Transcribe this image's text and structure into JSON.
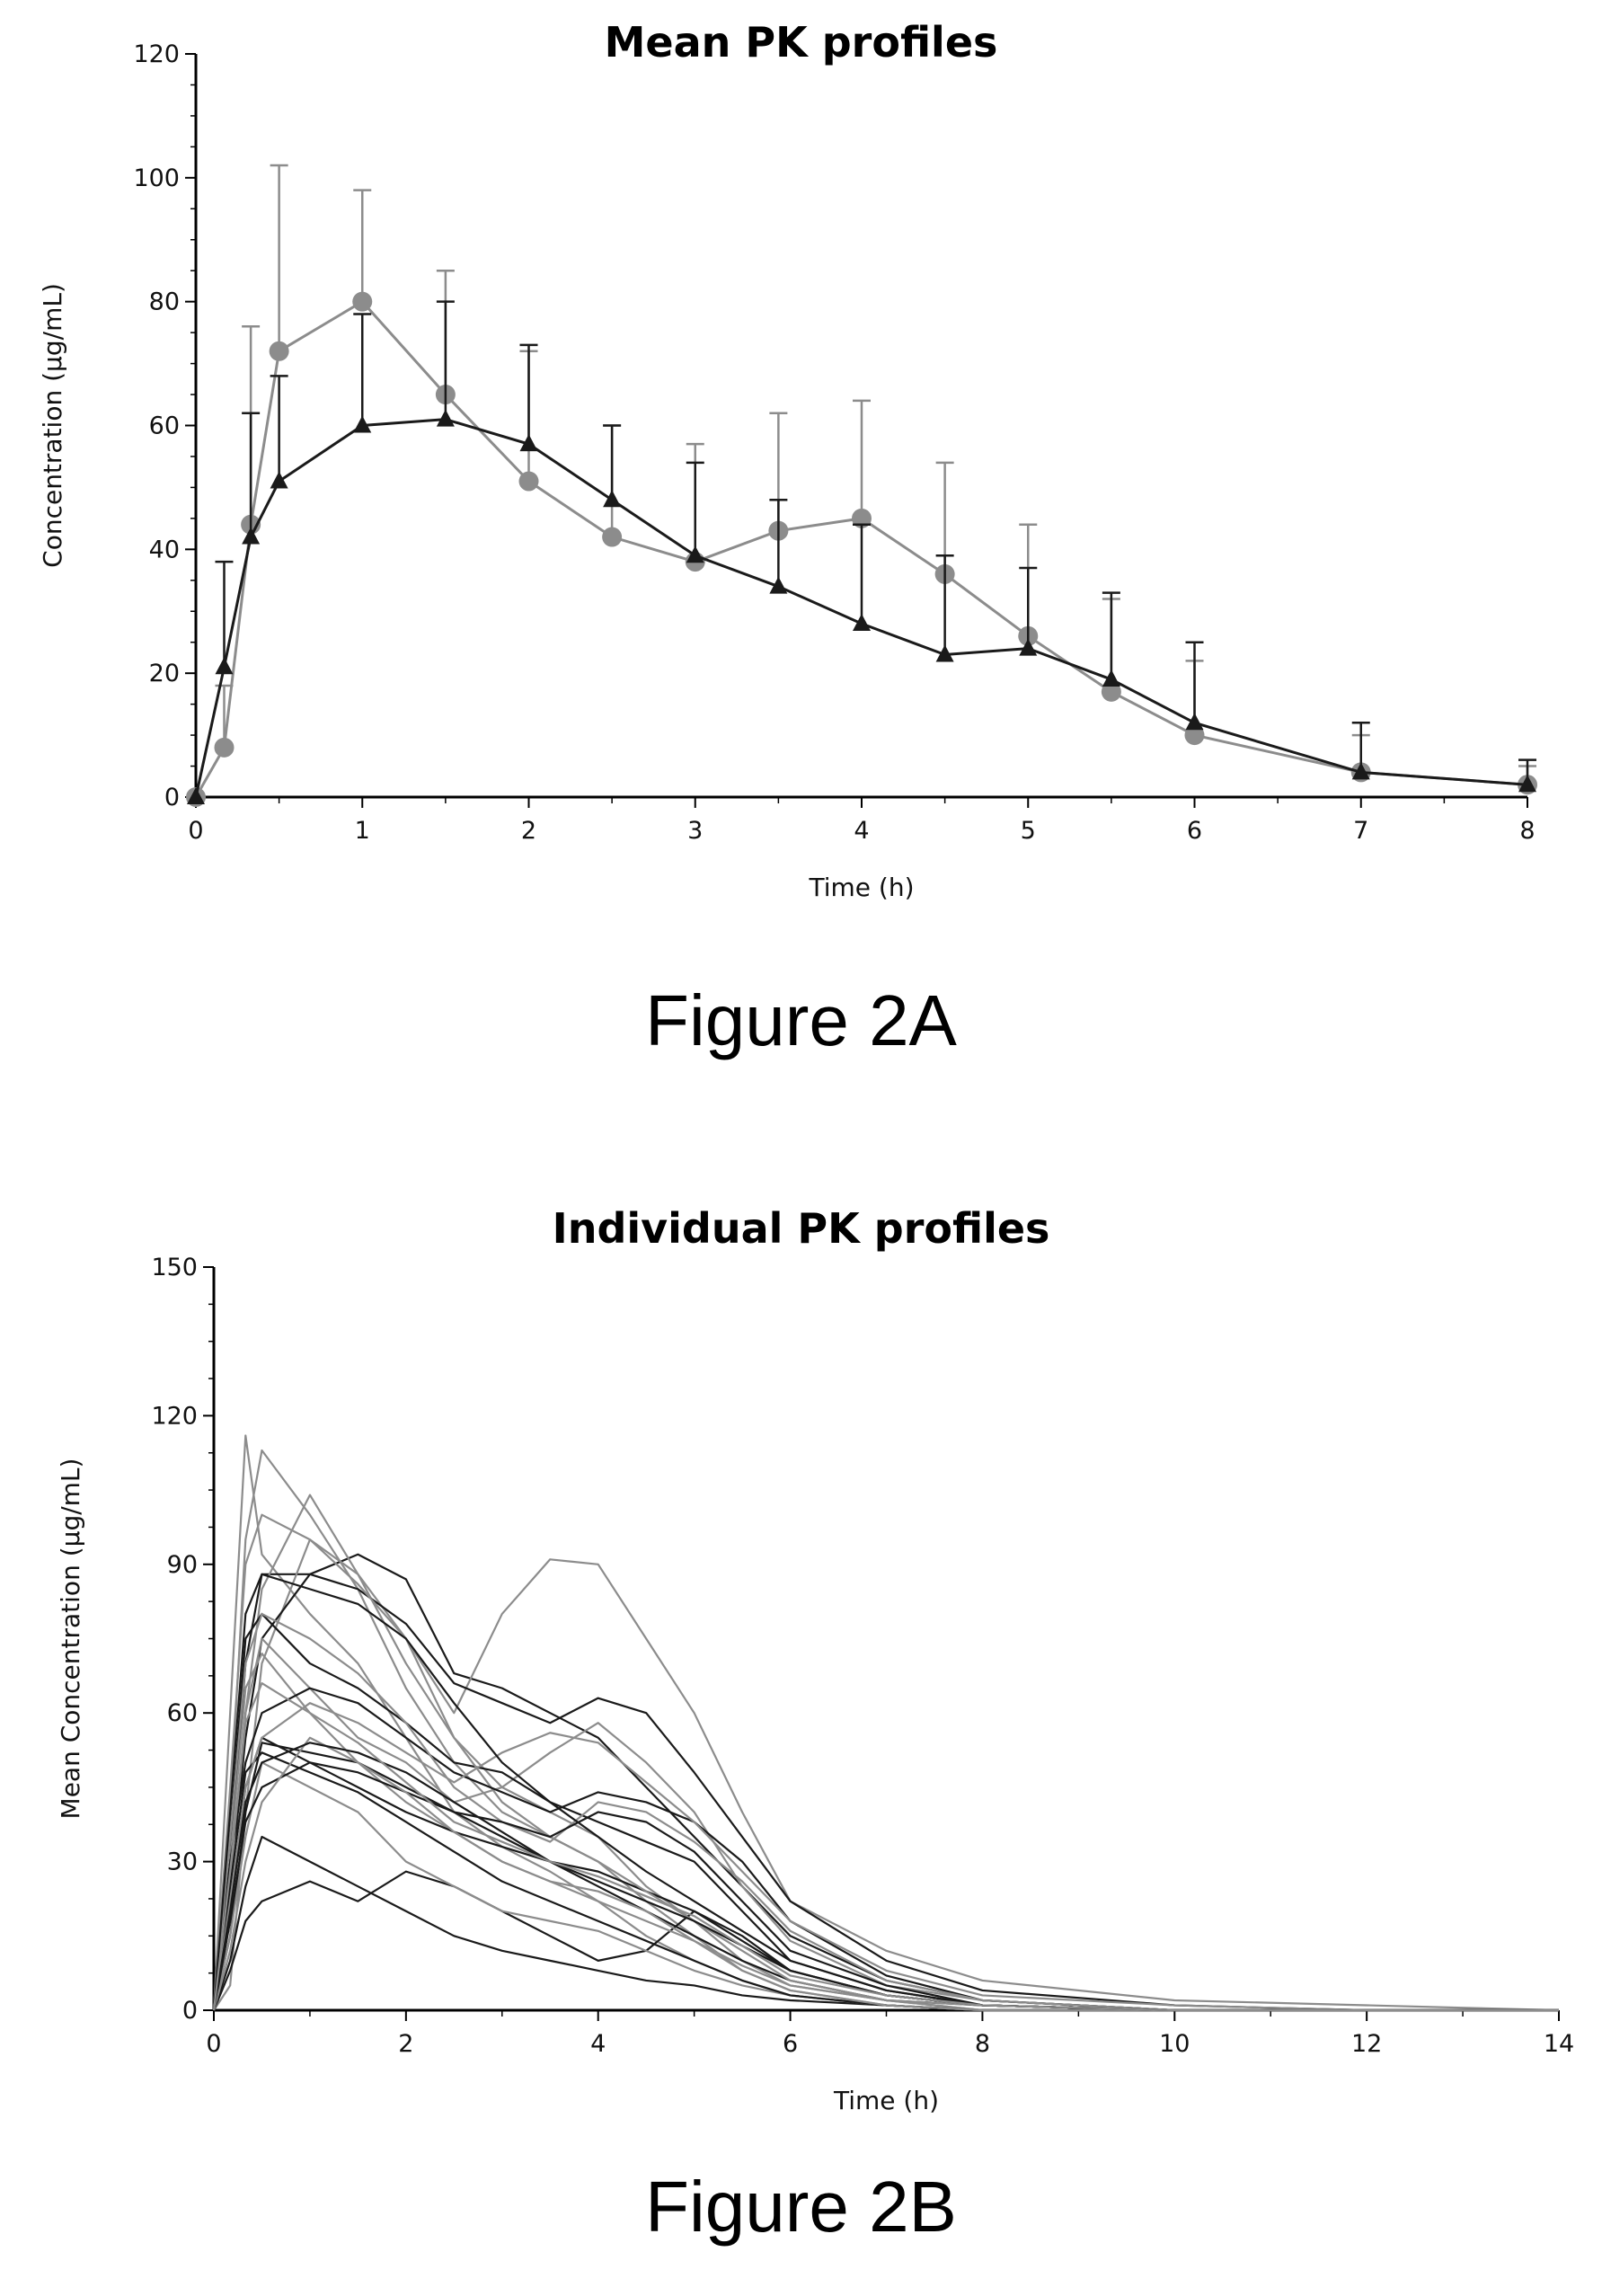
{
  "chart_data": [
    {
      "type": "line",
      "title": "Mean PK profiles",
      "caption": "Figure 2A",
      "xlabel": "Time (h)",
      "ylabel": "Concentration (µg/mL)",
      "xlim": [
        0,
        8
      ],
      "ylim": [
        0,
        120
      ],
      "xticks": [
        0,
        1,
        2,
        3,
        4,
        5,
        6,
        7,
        8
      ],
      "yticks": [
        0,
        20,
        40,
        60,
        80,
        100,
        120
      ],
      "grid": false,
      "legend": "none",
      "series": [
        {
          "marker": "circle",
          "color": "#8c8c8c",
          "x": [
            0,
            0.17,
            0.33,
            0.5,
            1,
            1.5,
            2,
            2.5,
            3,
            3.5,
            4,
            4.5,
            5,
            5.5,
            6,
            7,
            8
          ],
          "y": [
            0,
            8,
            44,
            72,
            80,
            65,
            51,
            42,
            38,
            43,
            45,
            36,
            26,
            17,
            10,
            4,
            2
          ],
          "error_upper": [
            0,
            18,
            76,
            102,
            98,
            85,
            72,
            60,
            57,
            62,
            64,
            54,
            44,
            32,
            22,
            10,
            5
          ]
        },
        {
          "marker": "triangle",
          "color": "#1a1a1a",
          "x": [
            0,
            0.17,
            0.33,
            0.5,
            1,
            1.5,
            2,
            2.5,
            3,
            3.5,
            4,
            4.5,
            5,
            5.5,
            6,
            7,
            8
          ],
          "y": [
            0,
            21,
            42,
            51,
            60,
            61,
            57,
            48,
            39,
            34,
            28,
            23,
            24,
            19,
            12,
            4,
            2
          ],
          "error_upper": [
            0,
            38,
            62,
            68,
            78,
            80,
            73,
            60,
            54,
            48,
            44,
            39,
            37,
            33,
            25,
            12,
            6
          ]
        }
      ]
    },
    {
      "type": "line",
      "title": "Individual PK profiles",
      "caption": "Figure 2B",
      "xlabel": "Time (h)",
      "ylabel": "Mean Concentration (µg/mL)",
      "xlim": [
        0,
        14
      ],
      "ylim": [
        0,
        150
      ],
      "xticks": [
        0,
        2,
        4,
        6,
        8,
        10,
        12,
        14
      ],
      "yticks": [
        0,
        30,
        60,
        90,
        120,
        150
      ],
      "grid": false,
      "legend": "none",
      "x": [
        0,
        0.17,
        0.33,
        0.5,
        1,
        1.5,
        2,
        2.5,
        3,
        3.5,
        4,
        4.5,
        5,
        5.5,
        6,
        7,
        8,
        10,
        12,
        14
      ],
      "series": [
        {
          "color": "#8c8c8c",
          "values": [
            0,
            60,
            116,
            92,
            80,
            70,
            55,
            40,
            33,
            28,
            22,
            15,
            10,
            6,
            3,
            1,
            0,
            0,
            0,
            0
          ]
        },
        {
          "color": "#8c8c8c",
          "values": [
            0,
            40,
            95,
            113,
            100,
            85,
            65,
            50,
            40,
            35,
            30,
            22,
            15,
            8,
            4,
            1,
            0,
            0,
            0,
            0
          ]
        },
        {
          "color": "#1a1a1a",
          "values": [
            0,
            30,
            70,
            88,
            88,
            92,
            87,
            68,
            65,
            60,
            55,
            45,
            35,
            25,
            15,
            6,
            2,
            0,
            0,
            0
          ]
        },
        {
          "color": "#8c8c8c",
          "values": [
            0,
            20,
            60,
            85,
            104,
            88,
            70,
            55,
            45,
            40,
            35,
            25,
            18,
            10,
            5,
            2,
            0,
            0,
            0,
            0
          ]
        },
        {
          "color": "#8c8c8c",
          "values": [
            0,
            5,
            40,
            70,
            95,
            88,
            75,
            60,
            80,
            91,
            90,
            75,
            60,
            40,
            22,
            12,
            6,
            2,
            1,
            0
          ]
        },
        {
          "color": "#1a1a1a",
          "values": [
            0,
            25,
            55,
            75,
            88,
            85,
            78,
            66,
            62,
            58,
            63,
            60,
            48,
            35,
            22,
            10,
            4,
            1,
            0,
            0
          ]
        },
        {
          "color": "#1a1a1a",
          "values": [
            0,
            15,
            40,
            54,
            52,
            50,
            45,
            40,
            35,
            30,
            25,
            20,
            15,
            10,
            6,
            2,
            1,
            0,
            0,
            0
          ]
        },
        {
          "color": "#1a1a1a",
          "values": [
            0,
            10,
            25,
            35,
            30,
            25,
            20,
            15,
            12,
            10,
            8,
            6,
            5,
            3,
            2,
            1,
            0,
            0,
            0,
            0
          ]
        },
        {
          "color": "#1a1a1a",
          "values": [
            0,
            8,
            18,
            22,
            26,
            22,
            28,
            25,
            20,
            15,
            10,
            12,
            20,
            15,
            8,
            3,
            1,
            0,
            0,
            0
          ]
        },
        {
          "color": "#8c8c8c",
          "values": [
            0,
            25,
            60,
            75,
            65,
            55,
            50,
            42,
            45,
            52,
            58,
            50,
            40,
            25,
            14,
            5,
            2,
            0,
            0,
            0
          ]
        },
        {
          "color": "#1a1a1a",
          "values": [
            0,
            35,
            75,
            80,
            70,
            65,
            58,
            50,
            48,
            42,
            38,
            34,
            30,
            20,
            10,
            4,
            1,
            0,
            0,
            0
          ]
        },
        {
          "color": "#8c8c8c",
          "values": [
            0,
            30,
            65,
            72,
            60,
            50,
            42,
            36,
            30,
            26,
            22,
            18,
            14,
            9,
            5,
            2,
            0,
            0,
            0,
            0
          ]
        },
        {
          "color": "#1a1a1a",
          "values": [
            0,
            20,
            45,
            55,
            50,
            45,
            40,
            36,
            33,
            30,
            28,
            24,
            20,
            14,
            8,
            3,
            1,
            0,
            0,
            0
          ]
        },
        {
          "color": "#8c8c8c",
          "values": [
            0,
            45,
            90,
            100,
            95,
            86,
            75,
            55,
            42,
            35,
            30,
            24,
            18,
            12,
            6,
            2,
            1,
            0,
            0,
            0
          ]
        },
        {
          "color": "#1a1a1a",
          "values": [
            0,
            30,
            50,
            60,
            65,
            62,
            55,
            48,
            44,
            40,
            44,
            42,
            38,
            30,
            18,
            7,
            2,
            0,
            0,
            0
          ]
        },
        {
          "color": "#8c8c8c",
          "values": [
            0,
            15,
            35,
            50,
            45,
            40,
            30,
            25,
            20,
            18,
            16,
            12,
            8,
            5,
            3,
            1,
            0,
            0,
            0,
            0
          ]
        },
        {
          "color": "#1a1a1a",
          "values": [
            0,
            25,
            48,
            52,
            48,
            44,
            38,
            32,
            26,
            22,
            18,
            14,
            10,
            6,
            3,
            1,
            0,
            0,
            0,
            0
          ]
        },
        {
          "color": "#8c8c8c",
          "values": [
            0,
            35,
            70,
            80,
            75,
            68,
            58,
            45,
            38,
            34,
            42,
            40,
            34,
            26,
            16,
            6,
            2,
            0,
            0,
            0
          ]
        },
        {
          "color": "#1a1a1a",
          "values": [
            0,
            18,
            38,
            45,
            50,
            48,
            44,
            40,
            38,
            35,
            40,
            38,
            32,
            22,
            12,
            5,
            1,
            0,
            0,
            0
          ]
        },
        {
          "color": "#8c8c8c",
          "values": [
            0,
            22,
            45,
            55,
            62,
            58,
            52,
            46,
            52,
            56,
            54,
            46,
            38,
            28,
            18,
            8,
            3,
            1,
            0,
            0
          ]
        },
        {
          "color": "#1a1a1a",
          "values": [
            0,
            40,
            80,
            88,
            85,
            82,
            75,
            62,
            50,
            42,
            35,
            28,
            22,
            16,
            10,
            4,
            1,
            0,
            0,
            0
          ]
        },
        {
          "color": "#8c8c8c",
          "values": [
            0,
            12,
            30,
            42,
            55,
            50,
            44,
            36,
            30,
            26,
            24,
            20,
            14,
            8,
            4,
            1,
            0,
            0,
            0,
            0
          ]
        },
        {
          "color": "#1a1a1a",
          "values": [
            0,
            20,
            42,
            50,
            54,
            52,
            48,
            42,
            36,
            30,
            26,
            22,
            18,
            13,
            8,
            3,
            1,
            0,
            0,
            0
          ]
        },
        {
          "color": "#8c8c8c",
          "values": [
            0,
            28,
            58,
            66,
            60,
            54,
            46,
            38,
            34,
            30,
            27,
            23,
            19,
            13,
            7,
            3,
            1,
            0,
            0,
            0
          ]
        }
      ]
    }
  ]
}
